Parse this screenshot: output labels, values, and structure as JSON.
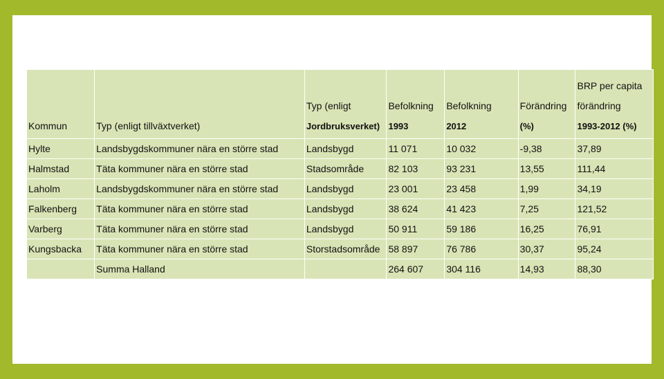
{
  "table": {
    "header": {
      "kommun": "Kommun",
      "typ_tillvaxt": "Typ (enligt tillväxtverket)",
      "typ_jordbruk_line1": "Typ (enligt",
      "typ_jordbruk_line2": "Jordbruksverket)",
      "bef1993_line1": "Befolkning",
      "bef1993_line2": "1993",
      "bef2012_line1": "Befolkning",
      "bef2012_line2": "2012",
      "forandring_line1": "Förändring",
      "forandring_line2": "(%)",
      "brp_line1": "BRP per capita",
      "brp_line2": "förändring",
      "brp_line3": "1993-2012 (%)"
    },
    "rows": [
      {
        "kommun": "Hylte",
        "typ_tillvaxt": "Landsbygdskommuner nära en större stad",
        "typ_jordbruk": "Landsbygd",
        "bef1993": "11 071",
        "bef2012": "10 032",
        "forandring": "-9,38",
        "brp": "37,89"
      },
      {
        "kommun": "Halmstad",
        "typ_tillvaxt": "Täta kommuner nära en större stad",
        "typ_jordbruk": "Stadsområde",
        "bef1993": "82 103",
        "bef2012": "93 231",
        "forandring": "13,55",
        "brp": "111,44"
      },
      {
        "kommun": "Laholm",
        "typ_tillvaxt": "Landsbygdskommuner nära en större stad",
        "typ_jordbruk": "Landsbygd",
        "bef1993": "23 001",
        "bef2012": "23 458",
        "forandring": "1,99",
        "brp": "34,19"
      },
      {
        "kommun": "Falkenberg",
        "typ_tillvaxt": "Täta kommuner nära en större stad",
        "typ_jordbruk": "Landsbygd",
        "bef1993": "38 624",
        "bef2012": "41 423",
        "forandring": "7,25",
        "brp": "121,52"
      },
      {
        "kommun": "Varberg",
        "typ_tillvaxt": "Täta kommuner nära en större stad",
        "typ_jordbruk": "Landsbygd",
        "bef1993": "50 911",
        "bef2012": "59 186",
        "forandring": "16,25",
        "brp": "76,91"
      },
      {
        "kommun": "Kungsbacka",
        "typ_tillvaxt": "Täta kommuner nära en större stad",
        "typ_jordbruk": "Storstadsområde",
        "bef1993": "58 897",
        "bef2012": "76 786",
        "forandring": "30,37",
        "brp": "95,24"
      },
      {
        "kommun": "",
        "typ_tillvaxt": "Summa Halland",
        "typ_jordbruk": "",
        "bef1993": "264 607",
        "bef2012": "304 116",
        "forandring": "14,93",
        "brp": "88,30"
      }
    ]
  },
  "colors": {
    "frame": "#a2b92c",
    "cell": "#d8e4b5",
    "grid": "#ffffff"
  }
}
